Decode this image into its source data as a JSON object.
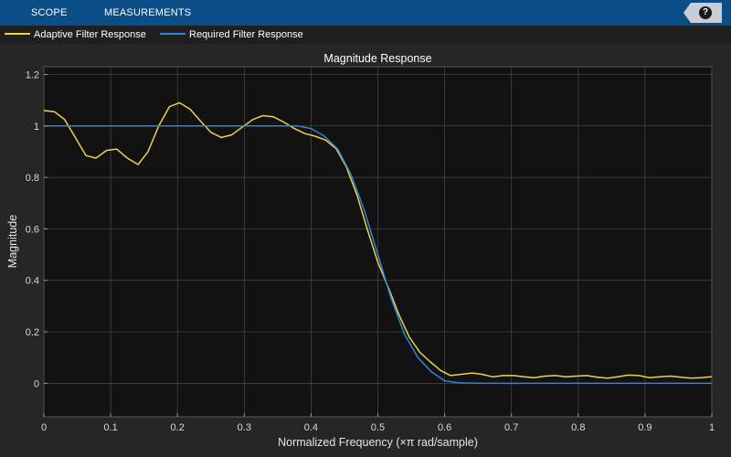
{
  "toolbar": {
    "tabs": [
      {
        "label": "SCOPE"
      },
      {
        "label": "MEASUREMENTS"
      }
    ],
    "help_label": "?"
  },
  "colors": {
    "adaptive": "#ecd24a",
    "required": "#2f86d6",
    "axes_bg": "#121212",
    "grid": "#4a4a4a"
  },
  "chart_data": {
    "type": "line",
    "title": "Magnitude Response",
    "xlabel": "Normalized Frequency (×π rad/sample)",
    "ylabel": "Magnitude",
    "xlim": [
      0,
      1
    ],
    "ylim": [
      -0.13,
      1.23
    ],
    "grid": true,
    "legend_position": "top",
    "xticks": [
      0,
      0.1,
      0.2,
      0.3,
      0.4,
      0.5,
      0.6,
      0.7,
      0.8,
      0.9,
      1
    ],
    "xtick_labels": [
      "0",
      "0.1",
      "0.2",
      "0.3",
      "0.4",
      "0.5",
      "0.6",
      "0.7",
      "0.8",
      "0.9",
      "1"
    ],
    "yticks": [
      0,
      0.2,
      0.4,
      0.6,
      0.8,
      1,
      1.2
    ],
    "ytick_labels": [
      "0",
      "0.2",
      "0.4",
      "0.6",
      "0.8",
      "1",
      "1.2"
    ],
    "series": [
      {
        "name": "Adaptive Filter Response",
        "color": "#ecd24a",
        "x": [
          0,
          0.016,
          0.031,
          0.047,
          0.063,
          0.078,
          0.094,
          0.109,
          0.125,
          0.141,
          0.156,
          0.172,
          0.188,
          0.203,
          0.219,
          0.234,
          0.25,
          0.266,
          0.281,
          0.297,
          0.313,
          0.328,
          0.344,
          0.359,
          0.375,
          0.391,
          0.406,
          0.422,
          0.438,
          0.453,
          0.469,
          0.484,
          0.5,
          0.516,
          0.531,
          0.547,
          0.563,
          0.578,
          0.594,
          0.609,
          0.625,
          0.641,
          0.656,
          0.672,
          0.688,
          0.703,
          0.719,
          0.734,
          0.75,
          0.766,
          0.781,
          0.797,
          0.813,
          0.828,
          0.844,
          0.859,
          0.875,
          0.891,
          0.906,
          0.922,
          0.938,
          0.953,
          0.969,
          0.984,
          1.0
        ],
        "y": [
          1.06,
          1.055,
          1.025,
          0.955,
          0.885,
          0.875,
          0.905,
          0.91,
          0.875,
          0.85,
          0.9,
          1.0,
          1.075,
          1.09,
          1.065,
          1.02,
          0.975,
          0.955,
          0.965,
          0.995,
          1.025,
          1.04,
          1.035,
          1.015,
          0.99,
          0.97,
          0.96,
          0.945,
          0.91,
          0.84,
          0.73,
          0.6,
          0.47,
          0.37,
          0.27,
          0.18,
          0.12,
          0.085,
          0.05,
          0.03,
          0.035,
          0.04,
          0.035,
          0.025,
          0.03,
          0.03,
          0.025,
          0.022,
          0.028,
          0.03,
          0.025,
          0.028,
          0.03,
          0.024,
          0.02,
          0.025,
          0.032,
          0.03,
          0.022,
          0.025,
          0.028,
          0.024,
          0.02,
          0.022,
          0.026
        ]
      },
      {
        "name": "Required Filter Response",
        "color": "#2f86d6",
        "x": [
          0,
          0.05,
          0.1,
          0.15,
          0.2,
          0.25,
          0.3,
          0.33,
          0.36,
          0.38,
          0.4,
          0.42,
          0.44,
          0.46,
          0.48,
          0.5,
          0.52,
          0.54,
          0.56,
          0.58,
          0.6,
          0.62,
          0.65,
          0.7,
          0.8,
          0.9,
          1.0
        ],
        "y": [
          1.0,
          1.0,
          1.0,
          1.0,
          1.0,
          1.0,
          1.0,
          1.0,
          1.0,
          1.0,
          0.99,
          0.96,
          0.91,
          0.81,
          0.67,
          0.5,
          0.33,
          0.19,
          0.1,
          0.045,
          0.01,
          0.002,
          0.0,
          0.0,
          0.0,
          0.0,
          0.0
        ]
      }
    ]
  }
}
